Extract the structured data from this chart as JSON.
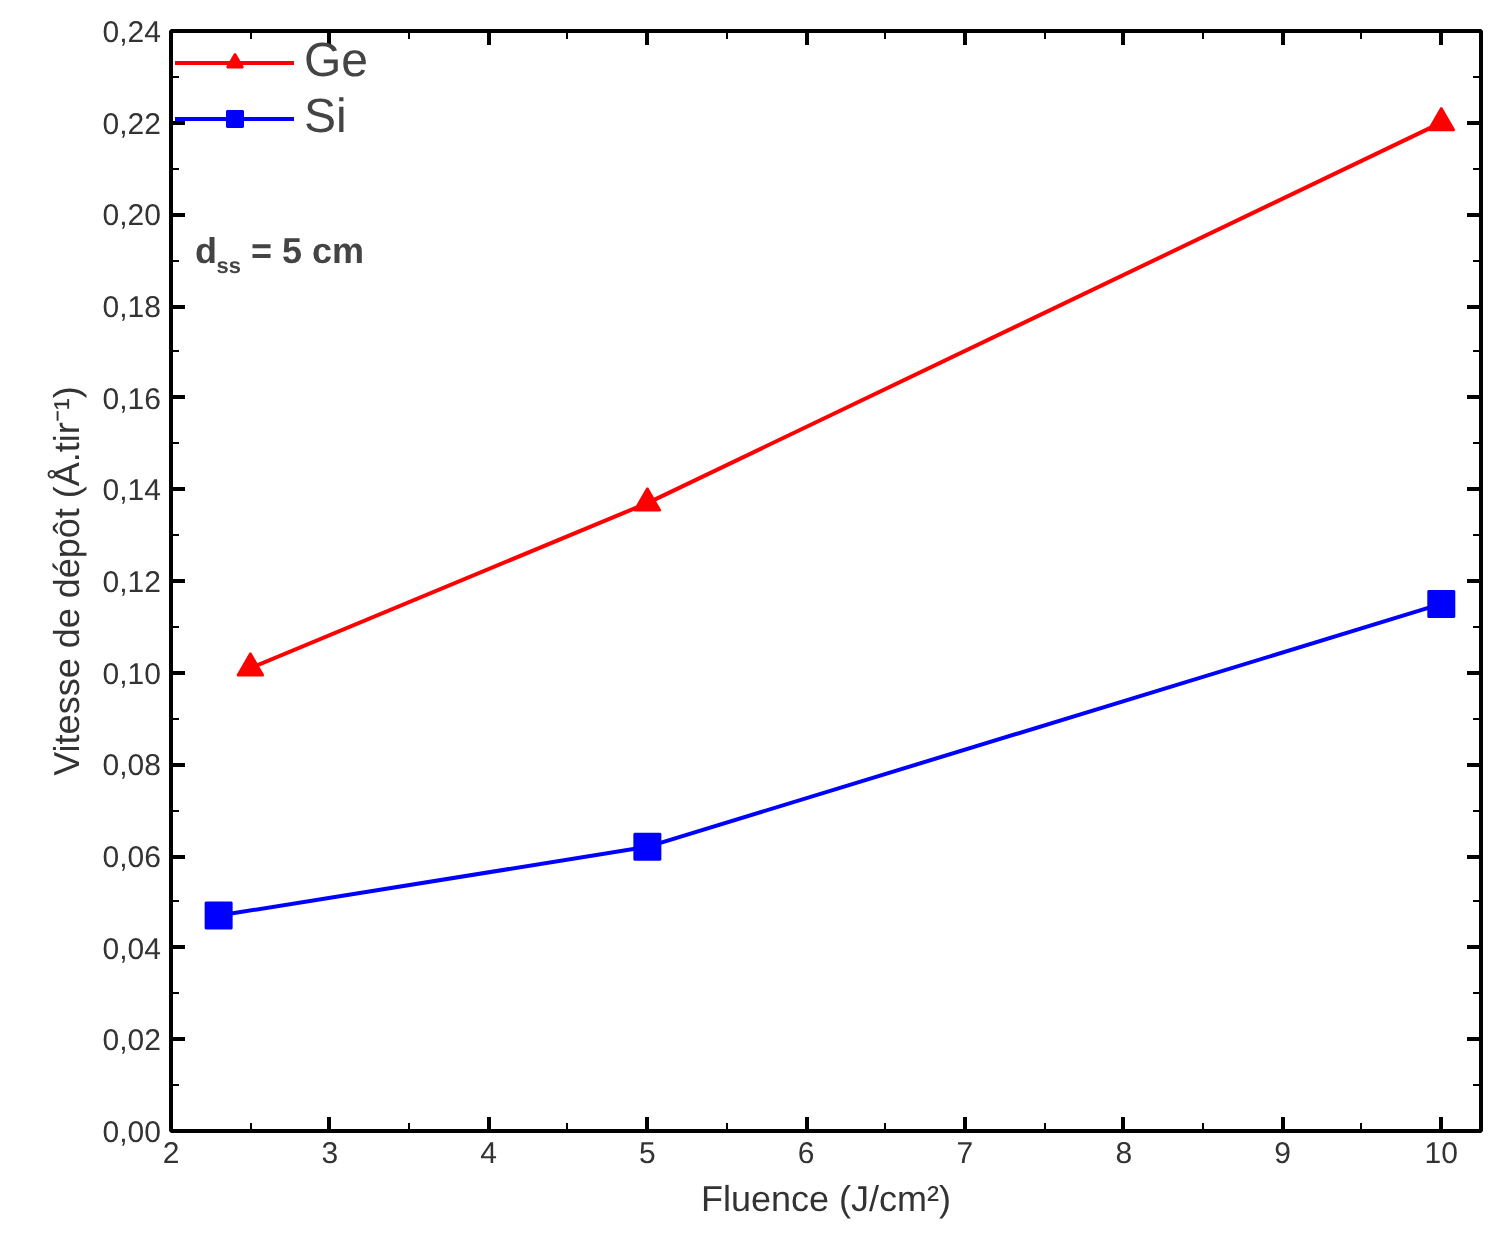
{
  "chart_data": {
    "type": "line",
    "xlabel": "Fluence (J/cm²)",
    "ylabel": "Vitesse de dépôt (Å.tir⁻¹)",
    "xlim": [
      2,
      10.25
    ],
    "ylim": [
      0,
      0.24
    ],
    "xticks": [
      2,
      3,
      4,
      5,
      6,
      7,
      8,
      9,
      10
    ],
    "yticks": [
      {
        "value": 0,
        "label": "0,00"
      },
      {
        "value": 0.02,
        "label": "0,02"
      },
      {
        "value": 0.04,
        "label": "0,04"
      },
      {
        "value": 0.06,
        "label": "0,06"
      },
      {
        "value": 0.08,
        "label": "0,08"
      },
      {
        "value": 0.1,
        "label": "0,10"
      },
      {
        "value": 0.12,
        "label": "0,12"
      },
      {
        "value": 0.14,
        "label": "0,14"
      },
      {
        "value": 0.16,
        "label": "0,16"
      },
      {
        "value": 0.18,
        "label": "0,18"
      },
      {
        "value": 0.2,
        "label": "0,20"
      },
      {
        "value": 0.22,
        "label": "0,22"
      },
      {
        "value": 0.24,
        "label": "0,24"
      }
    ],
    "grid": false,
    "legend": "top left",
    "line_style": "solid",
    "annotations": [
      "d$_{ss}$ = 5 cm"
    ],
    "series": [
      {
        "name": "Ge",
        "color": "#ff0000",
        "marker": "triangle",
        "x": [
          2.5,
          5,
          10
        ],
        "values": [
          0.101,
          0.137,
          0.22
        ]
      },
      {
        "name": "Si",
        "color": "#0000ff",
        "marker": "square",
        "x": [
          2.3,
          5,
          10
        ],
        "values": [
          0.047,
          0.062,
          0.115
        ]
      }
    ]
  }
}
